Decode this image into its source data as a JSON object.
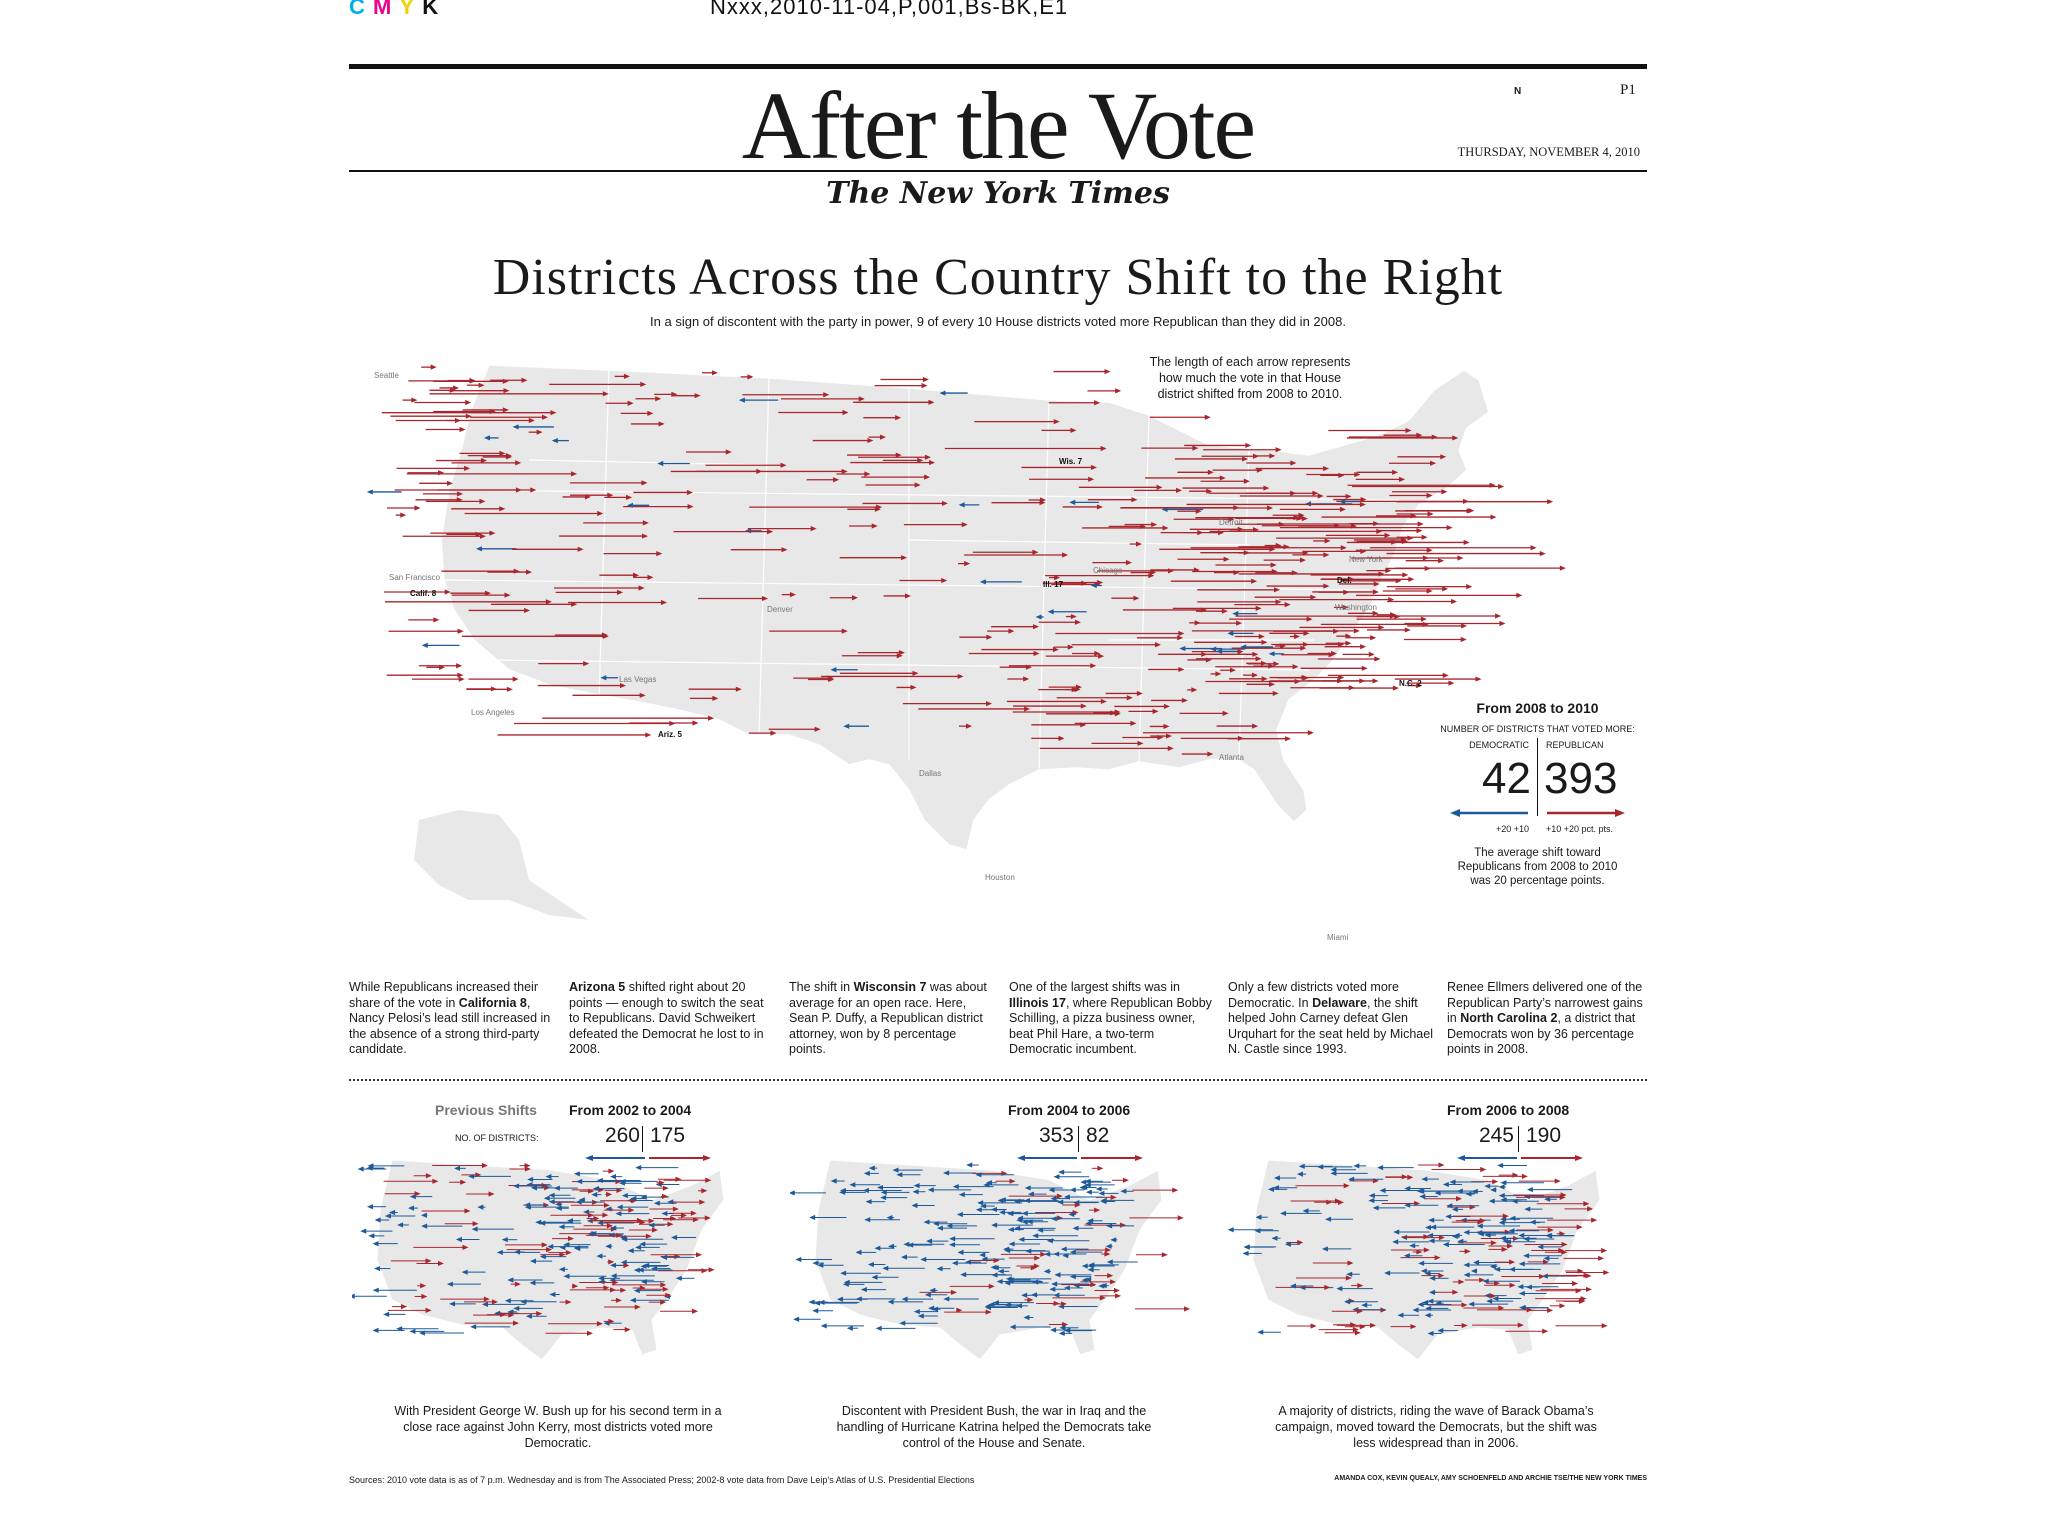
{
  "slug": {
    "cmyk": [
      "C",
      "M",
      "Y",
      "K"
    ],
    "code": "Nxxx,2010-11-04,P,001,Bs-BK,E1"
  },
  "colors": {
    "republican": "#a8262d",
    "democratic": "#1e5a99",
    "land": "#e6e6e6"
  },
  "masthead": {
    "title": "After the Vote",
    "edition_mark": "N",
    "page": "P1",
    "date": "THURSDAY, NOVEMBER 4, 2010",
    "paper": "The New York Times"
  },
  "story": {
    "headline": "Districts Across the Country Shift to the Right",
    "dek": "In a sign of discontent with the party in power, 9 of every 10 House districts voted more Republican than they did in 2008.",
    "map_note": "The length of each arrow represents how much the vote in that House district shifted from 2008 to 2010."
  },
  "map_labels": {
    "cities": [
      "Seattle",
      "San Francisco",
      "Los Angeles",
      "Las Vegas",
      "Denver",
      "Chicago",
      "Detroit",
      "New York",
      "Washington",
      "Atlanta",
      "Dallas",
      "Houston",
      "Miami"
    ],
    "districts": [
      "Calif. 8",
      "Ariz. 5",
      "Wis. 7",
      "Ill. 17",
      "Del.",
      "N.C. 2"
    ]
  },
  "legend": {
    "title": "From 2008 to 2010",
    "subtitle": "NUMBER OF DISTRICTS THAT VOTED MORE:",
    "dem_label": "DEMOCRATIC",
    "rep_label": "REPUBLICAN",
    "dem_count": "42",
    "rep_count": "393",
    "scale_left": "+20  +10",
    "scale_right": "+10  +20 pct. pts.",
    "note": "The average shift toward Republicans from 2008 to 2010 was 20 percentage points."
  },
  "annotations": [
    {
      "parts": [
        "While Republicans increased their share of the vote in ",
        "California 8",
        ", Nancy Pelosi’s lead still increased in the absence of a strong third-party candidate."
      ]
    },
    {
      "parts": [
        "",
        "Arizona 5",
        " shifted right about 20 points — enough to switch the seat to Republicans. David Schweikert defeated the Democrat he lost to in 2008."
      ]
    },
    {
      "parts": [
        "The shift in ",
        "Wisconsin 7",
        " was about average for an open race. Here, Sean P. Duffy, a Republican district attorney, won by 8 percentage points."
      ]
    },
    {
      "parts": [
        "One of the largest shifts was in ",
        "Illinois 17",
        ", where Republican Bobby Schilling, a pizza business owner, beat Phil Hare, a two-term Democratic incumbent."
      ]
    },
    {
      "parts": [
        "Only a few districts voted more Democratic. In ",
        "Delaware",
        ", the shift helped John Carney defeat Glen Urquhart for the seat held by Michael N. Castle since 1993."
      ]
    },
    {
      "parts": [
        "Renee Ellmers delivered one of the Republican Party’s narrowest gains in ",
        "North Carolina 2",
        ", a district that Democrats won by 36 percentage points in 2008."
      ]
    }
  ],
  "previous": {
    "label": "Previous Shifts",
    "sublabel": "NO. OF DISTRICTS:",
    "panels": [
      {
        "title": "From 2002 to 2004",
        "dem": "260",
        "rep": "175",
        "caption": "With President George W. Bush up for his second term in a close race against John Kerry, most districts voted more Democratic."
      },
      {
        "title": "From 2004 to 2006",
        "dem": "353",
        "rep": "82",
        "caption": "Discontent with President Bush, the war in Iraq and the handling of Hurricane Katrina helped the Democrats take control of the House and Senate."
      },
      {
        "title": "From 2006 to 2008",
        "dem": "245",
        "rep": "190",
        "caption": "A majority of districts, riding the wave of Barack Obama’s campaign, moved toward the Democrats, but the shift was less widespread than in 2006."
      }
    ]
  },
  "footer": {
    "sources": "Sources: 2010 vote data is as of 7 p.m. Wednesday and is from The Associated Press; 2002-8 vote data from Dave Leip’s Atlas of U.S. Presidential Elections",
    "credits": "AMANDA COX, KEVIN QUEALY, AMY SCHOENFELD AND ARCHIE TSE/THE NEW YORK TIMES"
  }
}
